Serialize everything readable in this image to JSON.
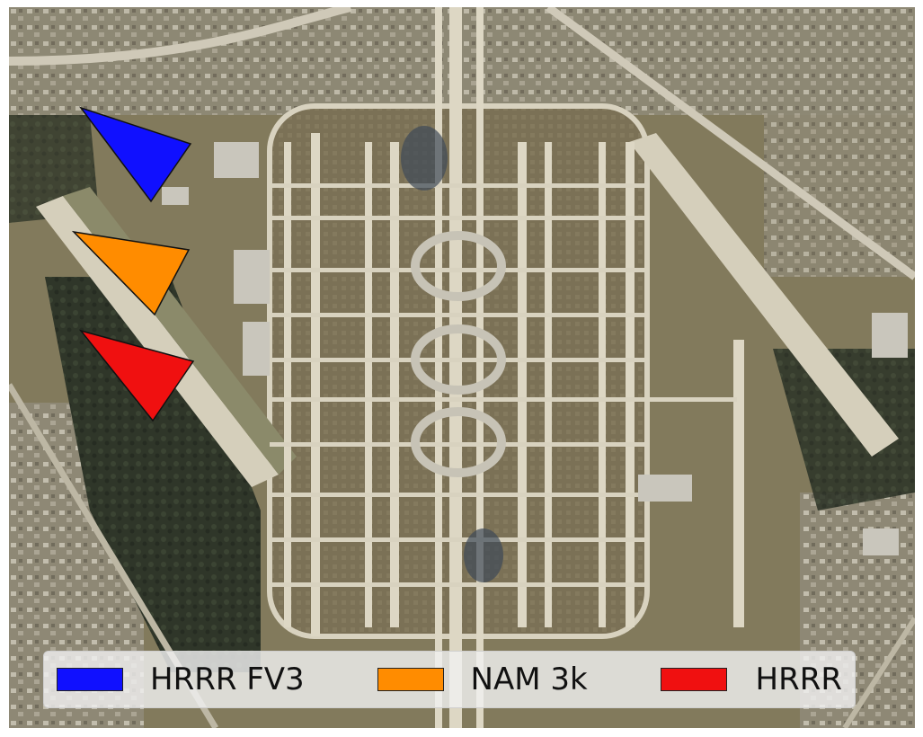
{
  "map": {
    "kind": "satellite airport imagery",
    "colors": {
      "land": "#8a8260",
      "tarmac": "#d8d2bf",
      "field": "#7e7458",
      "forest": "#2c3327",
      "urban": "#b9b4a8"
    }
  },
  "markers": [
    {
      "model": "HRRR FV3",
      "color": "#1010ff",
      "shape": "wind-barb-triangle"
    },
    {
      "model": "NAM 3k",
      "color": "#ff8c00",
      "shape": "wind-barb-triangle"
    },
    {
      "model": "HRRR",
      "color": "#f01010",
      "shape": "wind-barb-triangle"
    }
  ],
  "legend": {
    "placement": "bottom",
    "entries": [
      {
        "label": "HRRR FV3",
        "color": "#1010ff"
      },
      {
        "label": "NAM 3k",
        "color": "#ff8c00"
      },
      {
        "label": "HRRR",
        "color": "#f01010"
      }
    ]
  }
}
